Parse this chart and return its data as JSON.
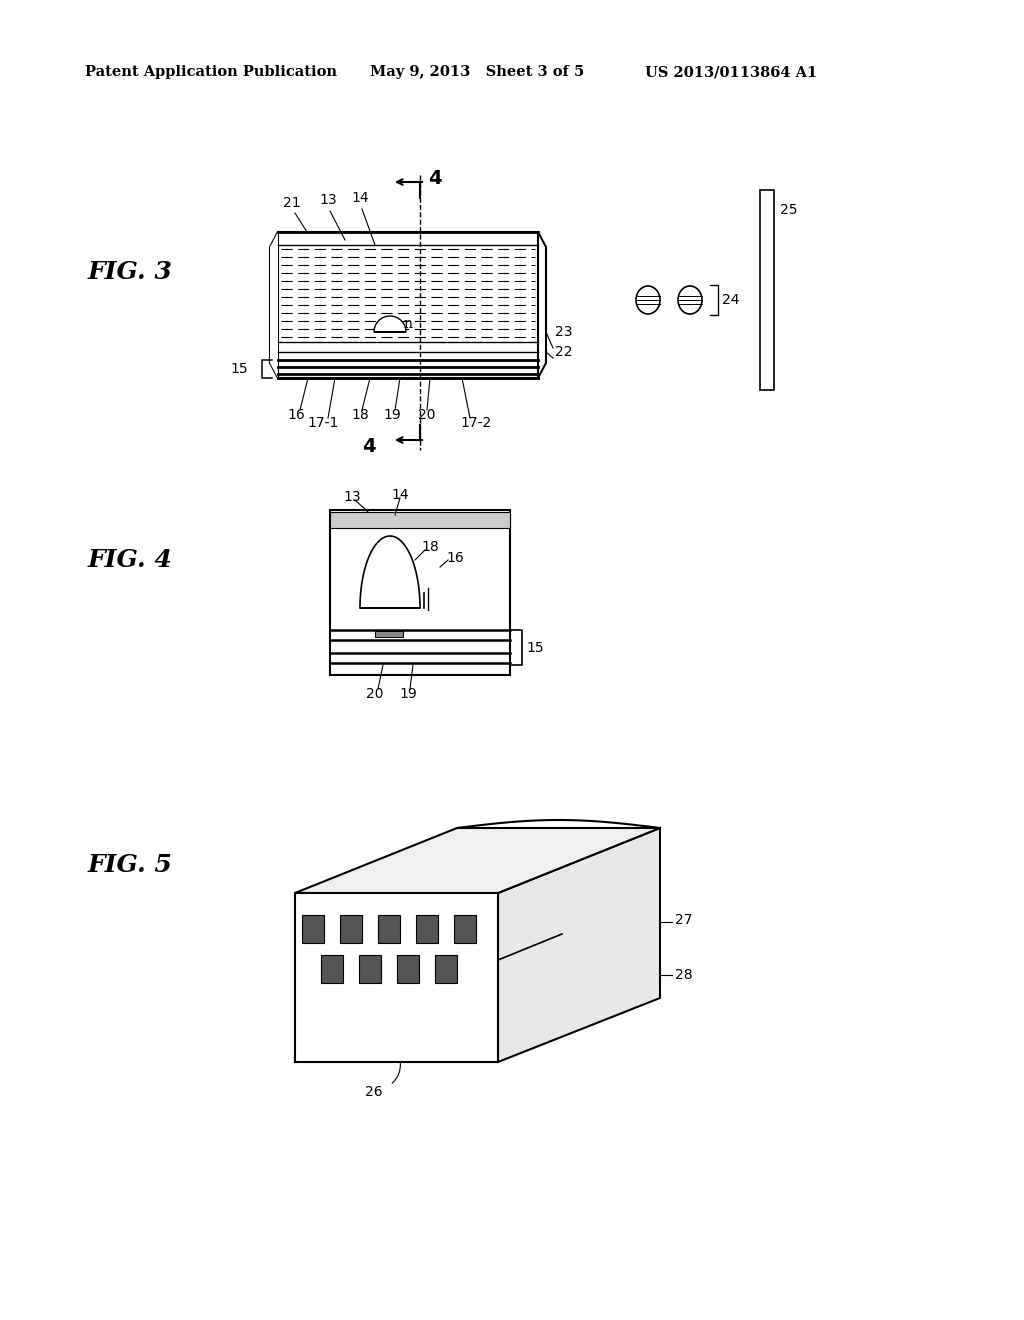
{
  "bg_color": "#ffffff",
  "header_left": "Patent Application Publication",
  "header_mid": "May 9, 2013   Sheet 3 of 5",
  "header_right": "US 2013/0113864 A1",
  "fig3_label": "FIG. 3",
  "fig4_label": "FIG. 4",
  "fig5_label": "FIG. 5",
  "text_color": "#000000"
}
